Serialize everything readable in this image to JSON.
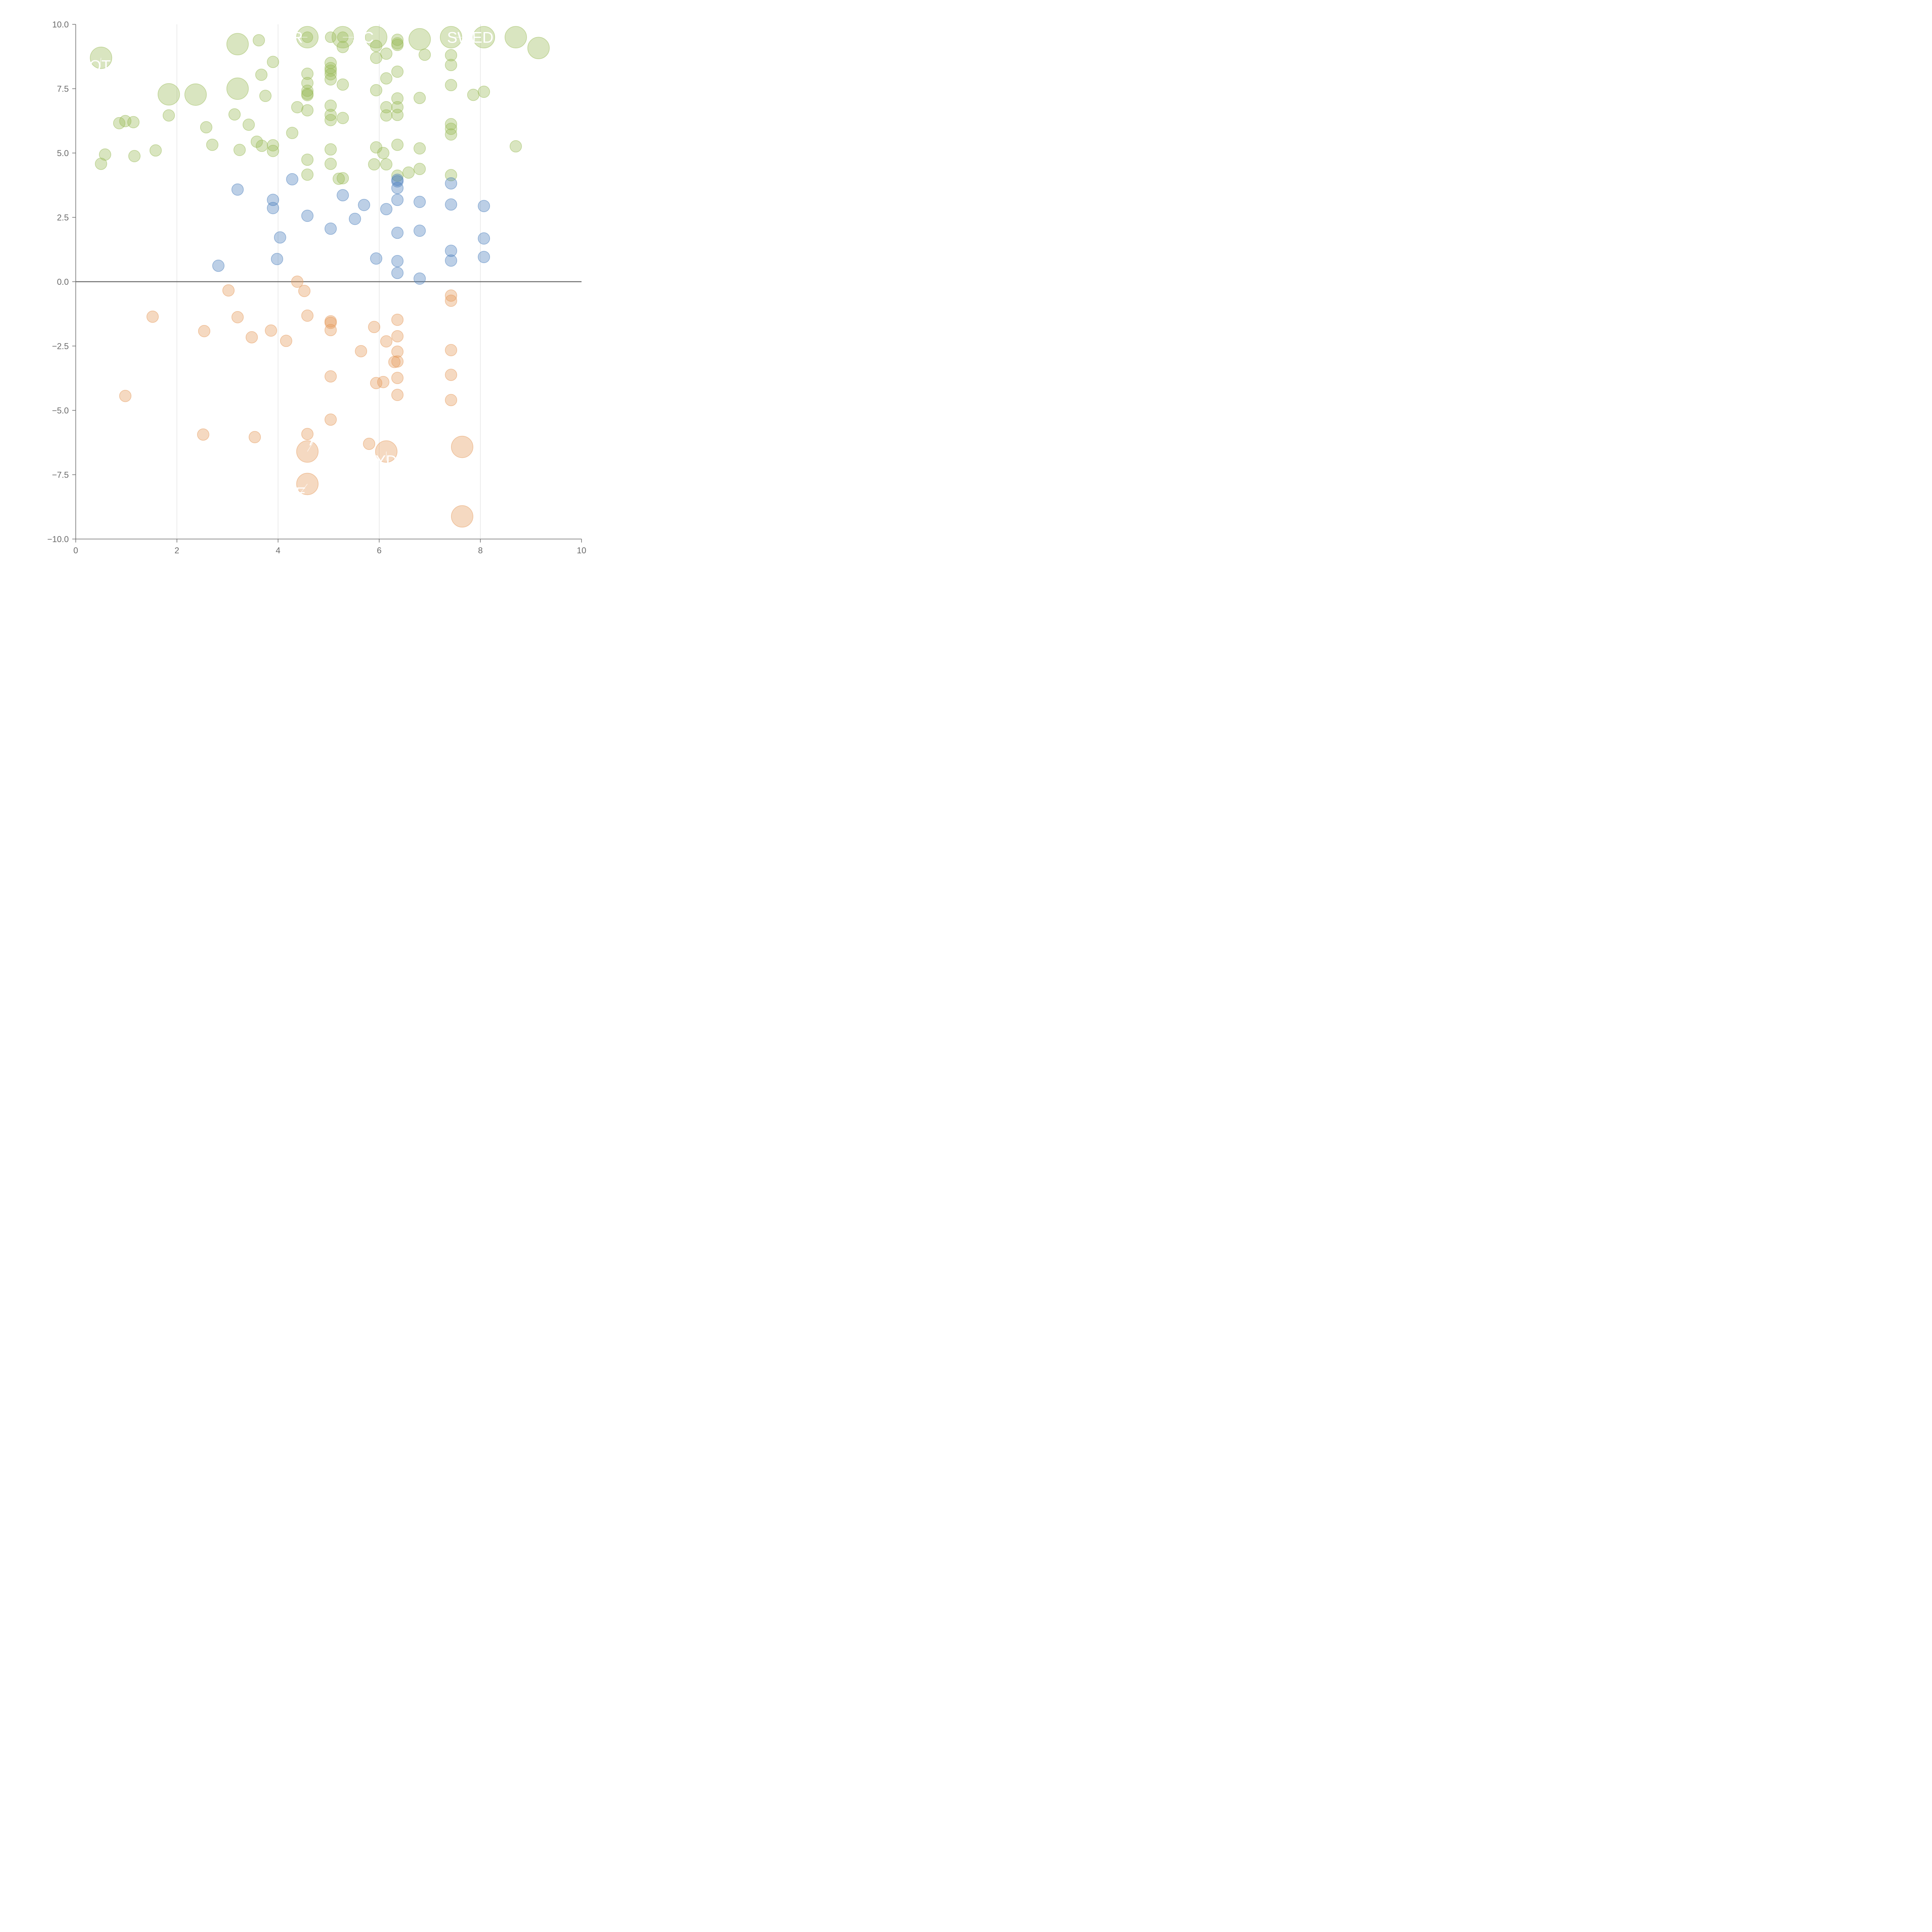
{
  "chart_data": {
    "type": "scatter",
    "title": "",
    "xlabel": "",
    "ylabel": "",
    "xlim": [
      0,
      10
    ],
    "ylim": [
      -10,
      10
    ],
    "x_ticks": [
      "0",
      "2",
      "4",
      "6",
      "8",
      "10"
    ],
    "y_ticks": [
      "10.0",
      "7.5",
      "5.0",
      "2.5",
      "0.0",
      "−2.5",
      "−5.0",
      "−7.5",
      "−10.0"
    ],
    "x_tick_values": [
      0,
      2,
      4,
      6,
      8,
      10
    ],
    "y_tick_values": [
      10,
      7.5,
      5,
      2.5,
      0,
      -2.5,
      -5,
      -7.5,
      -10
    ],
    "grid": "vertical",
    "legend": "none",
    "zero_line": true,
    "colors": {
      "green": "#9bbb59",
      "blue": "#4f81bd",
      "orange": "#e59b5c",
      "axis": "#6b6b6b",
      "grid": "#d9d9d9",
      "label": "#ffffff"
    },
    "series": [
      {
        "color": "green",
        "points": [
          [
            0.5,
            8.7,
            2
          ],
          [
            1.84,
            7.28,
            2
          ],
          [
            2.37,
            7.27,
            2
          ],
          [
            3.2,
            9.23,
            2
          ],
          [
            3.2,
            7.5,
            2
          ],
          [
            4.58,
            9.5,
            2
          ],
          [
            5.28,
            9.5,
            2
          ],
          [
            5.94,
            9.5,
            2
          ],
          [
            6.8,
            9.42,
            2
          ],
          [
            7.42,
            9.5,
            2
          ],
          [
            8.07,
            9.5,
            2
          ],
          [
            8.7,
            9.5,
            2
          ],
          [
            9.15,
            9.08,
            2
          ],
          [
            4.58,
            9.5,
            1.2
          ],
          [
            5.04,
            9.5,
            1.2
          ],
          [
            5.28,
            9.5,
            1.2
          ],
          [
            3.62,
            9.38,
            1
          ],
          [
            3.9,
            8.54,
            1
          ],
          [
            3.67,
            8.04,
            1
          ],
          [
            3.75,
            7.22,
            1
          ],
          [
            4.58,
            8.08,
            1
          ],
          [
            4.58,
            7.72,
            1
          ],
          [
            4.58,
            7.42,
            1
          ],
          [
            4.58,
            7.25,
            1
          ],
          [
            4.58,
            7.3,
            1
          ],
          [
            4.38,
            6.78,
            1
          ],
          [
            4.58,
            6.66,
            1
          ],
          [
            5.04,
            8.5,
            1
          ],
          [
            5.04,
            8.3,
            1
          ],
          [
            5.04,
            8.2,
            1
          ],
          [
            5.04,
            8.06,
            1
          ],
          [
            5.04,
            7.86,
            1
          ],
          [
            5.28,
            7.66,
            1
          ],
          [
            5.28,
            9.12,
            1
          ],
          [
            5.94,
            9.16,
            1
          ],
          [
            5.94,
            8.7,
            1
          ],
          [
            6.14,
            8.86,
            1
          ],
          [
            6.36,
            9.4,
            1
          ],
          [
            6.36,
            9.26,
            1
          ],
          [
            6.36,
            9.2,
            1
          ],
          [
            6.9,
            8.82,
            1
          ],
          [
            7.42,
            8.8,
            1
          ],
          [
            7.42,
            8.42,
            1
          ],
          [
            6.14,
            7.9,
            1
          ],
          [
            6.36,
            8.16,
            1
          ],
          [
            5.94,
            7.44,
            1
          ],
          [
            6.36,
            7.12,
            1
          ],
          [
            6.8,
            7.14,
            1
          ],
          [
            7.42,
            7.64,
            1
          ],
          [
            7.86,
            7.26,
            1
          ],
          [
            8.07,
            7.38,
            1
          ],
          [
            0.86,
            6.16,
            1
          ],
          [
            0.98,
            6.24,
            1
          ],
          [
            1.14,
            6.2,
            1
          ],
          [
            1.84,
            6.46,
            1
          ],
          [
            2.58,
            6.0,
            1
          ],
          [
            3.14,
            6.5,
            1
          ],
          [
            3.42,
            6.1,
            1
          ],
          [
            4.28,
            5.78,
            1
          ],
          [
            5.04,
            6.84,
            1
          ],
          [
            5.04,
            6.48,
            1
          ],
          [
            5.04,
            6.28,
            1
          ],
          [
            5.28,
            6.36,
            1
          ],
          [
            6.14,
            6.78,
            1
          ],
          [
            6.14,
            6.46,
            1
          ],
          [
            6.36,
            6.78,
            1
          ],
          [
            6.36,
            6.48,
            1
          ],
          [
            7.42,
            6.12,
            1
          ],
          [
            7.42,
            5.94,
            1
          ],
          [
            7.42,
            5.72,
            1
          ],
          [
            0.58,
            4.94,
            1
          ],
          [
            0.5,
            4.58,
            1
          ],
          [
            1.16,
            4.88,
            1
          ],
          [
            1.58,
            5.1,
            1
          ],
          [
            2.7,
            5.32,
            1
          ],
          [
            3.24,
            5.12,
            1
          ],
          [
            3.58,
            5.44,
            1
          ],
          [
            3.68,
            5.28,
            1
          ],
          [
            3.9,
            5.3,
            1
          ],
          [
            3.9,
            5.08,
            1
          ],
          [
            4.58,
            4.74,
            1
          ],
          [
            4.58,
            4.16,
            1
          ],
          [
            5.04,
            5.14,
            1
          ],
          [
            5.04,
            4.58,
            1
          ],
          [
            5.2,
            4.0,
            1
          ],
          [
            5.28,
            4.02,
            1
          ],
          [
            5.94,
            5.22,
            1
          ],
          [
            5.9,
            4.56,
            1
          ],
          [
            6.08,
            5.0,
            1
          ],
          [
            6.14,
            4.56,
            1
          ],
          [
            6.36,
            5.32,
            1
          ],
          [
            6.36,
            4.12,
            1
          ],
          [
            6.58,
            4.24,
            1
          ],
          [
            6.8,
            5.18,
            1
          ],
          [
            6.8,
            4.38,
            1
          ],
          [
            7.42,
            4.14,
            1
          ],
          [
            8.7,
            5.26,
            1
          ]
        ]
      },
      {
        "color": "blue",
        "points": [
          [
            3.2,
            3.58,
            1
          ],
          [
            3.9,
            3.18,
            1
          ],
          [
            3.9,
            2.86,
            1
          ],
          [
            4.28,
            3.98,
            1
          ],
          [
            4.58,
            2.56,
            1
          ],
          [
            4.04,
            1.72,
            1
          ],
          [
            3.98,
            0.88,
            1
          ],
          [
            2.82,
            0.62,
            1
          ],
          [
            5.04,
            2.06,
            1
          ],
          [
            5.28,
            3.36,
            1
          ],
          [
            5.52,
            2.44,
            1
          ],
          [
            5.7,
            2.98,
            1
          ],
          [
            5.94,
            0.9,
            1
          ],
          [
            6.14,
            2.82,
            1
          ],
          [
            6.36,
            3.96,
            1
          ],
          [
            6.36,
            3.9,
            1
          ],
          [
            6.36,
            3.64,
            1
          ],
          [
            6.36,
            3.18,
            1
          ],
          [
            6.36,
            1.9,
            1
          ],
          [
            6.36,
            0.8,
            1
          ],
          [
            6.36,
            0.34,
            1
          ],
          [
            6.8,
            3.1,
            1
          ],
          [
            6.8,
            1.98,
            1
          ],
          [
            6.8,
            0.12,
            1
          ],
          [
            7.42,
            3.82,
            1
          ],
          [
            7.42,
            3.0,
            1
          ],
          [
            7.42,
            1.2,
            1
          ],
          [
            7.42,
            0.82,
            1
          ],
          [
            8.07,
            2.94,
            1
          ],
          [
            8.07,
            1.68,
            1
          ],
          [
            8.07,
            0.96,
            1
          ]
        ]
      },
      {
        "color": "orange",
        "points": [
          [
            1.52,
            -1.36,
            1
          ],
          [
            2.54,
            -1.92,
            1
          ],
          [
            3.02,
            -0.34,
            1
          ],
          [
            3.2,
            -1.38,
            1
          ],
          [
            3.48,
            -2.16,
            1
          ],
          [
            3.86,
            -1.9,
            1
          ],
          [
            4.16,
            -2.3,
            1
          ],
          [
            4.38,
            0.0,
            1
          ],
          [
            4.52,
            -0.36,
            1
          ],
          [
            4.58,
            -1.32,
            1
          ],
          [
            5.04,
            -1.54,
            1
          ],
          [
            5.04,
            -1.6,
            1
          ],
          [
            5.04,
            -1.88,
            1
          ],
          [
            5.64,
            -2.7,
            1
          ],
          [
            5.9,
            -1.76,
            1
          ],
          [
            6.14,
            -2.32,
            1
          ],
          [
            6.36,
            -1.48,
            1
          ],
          [
            6.36,
            -2.12,
            1
          ],
          [
            6.36,
            -2.72,
            1
          ],
          [
            6.3,
            -3.12,
            1
          ],
          [
            6.36,
            -3.1,
            1
          ],
          [
            6.36,
            -3.74,
            1
          ],
          [
            6.36,
            -4.4,
            1
          ],
          [
            5.94,
            -3.94,
            1
          ],
          [
            6.08,
            -3.9,
            1
          ],
          [
            5.04,
            -3.68,
            1
          ],
          [
            7.42,
            -0.54,
            1
          ],
          [
            7.42,
            -0.74,
            1
          ],
          [
            7.42,
            -2.66,
            1
          ],
          [
            7.42,
            -3.62,
            1
          ],
          [
            7.42,
            -4.6,
            1
          ],
          [
            0.98,
            -4.44,
            1
          ],
          [
            2.52,
            -5.94,
            1
          ],
          [
            3.54,
            -6.04,
            1
          ],
          [
            4.58,
            -5.92,
            1
          ],
          [
            5.04,
            -5.36,
            1
          ],
          [
            5.8,
            -6.3,
            1
          ],
          [
            4.58,
            -6.6,
            2
          ],
          [
            4.58,
            -7.86,
            2
          ],
          [
            6.14,
            -6.6,
            2
          ],
          [
            7.64,
            -6.42,
            2
          ],
          [
            7.64,
            -9.12,
            2
          ]
        ]
      }
    ],
    "point_labels": [
      {
        "text": "ER",
        "x": 4.28,
        "y": 9.5,
        "point": [
          4.58,
          9.5
        ]
      },
      {
        "text": "SC",
        "x": 5.68,
        "y": 9.5,
        "point": [
          5.28,
          9.5
        ]
      },
      {
        "text": "SWED",
        "x": 7.8,
        "y": 9.5,
        "point": [
          7.42,
          9.5
        ]
      },
      {
        "text": "OT",
        "x": 0.48,
        "y": 8.4,
        "point": [
          0.5,
          8.7
        ]
      },
      {
        "text": "A",
        "x": 4.72,
        "y": -6.15,
        "point": [
          4.58,
          -6.6
        ]
      },
      {
        "text": "YD",
        "x": 6.14,
        "y": -6.95,
        "point": [
          6.14,
          -6.6
        ]
      },
      {
        "text": "E",
        "x": 4.45,
        "y": -8.2,
        "point": [
          4.58,
          -7.86
        ]
      }
    ]
  }
}
